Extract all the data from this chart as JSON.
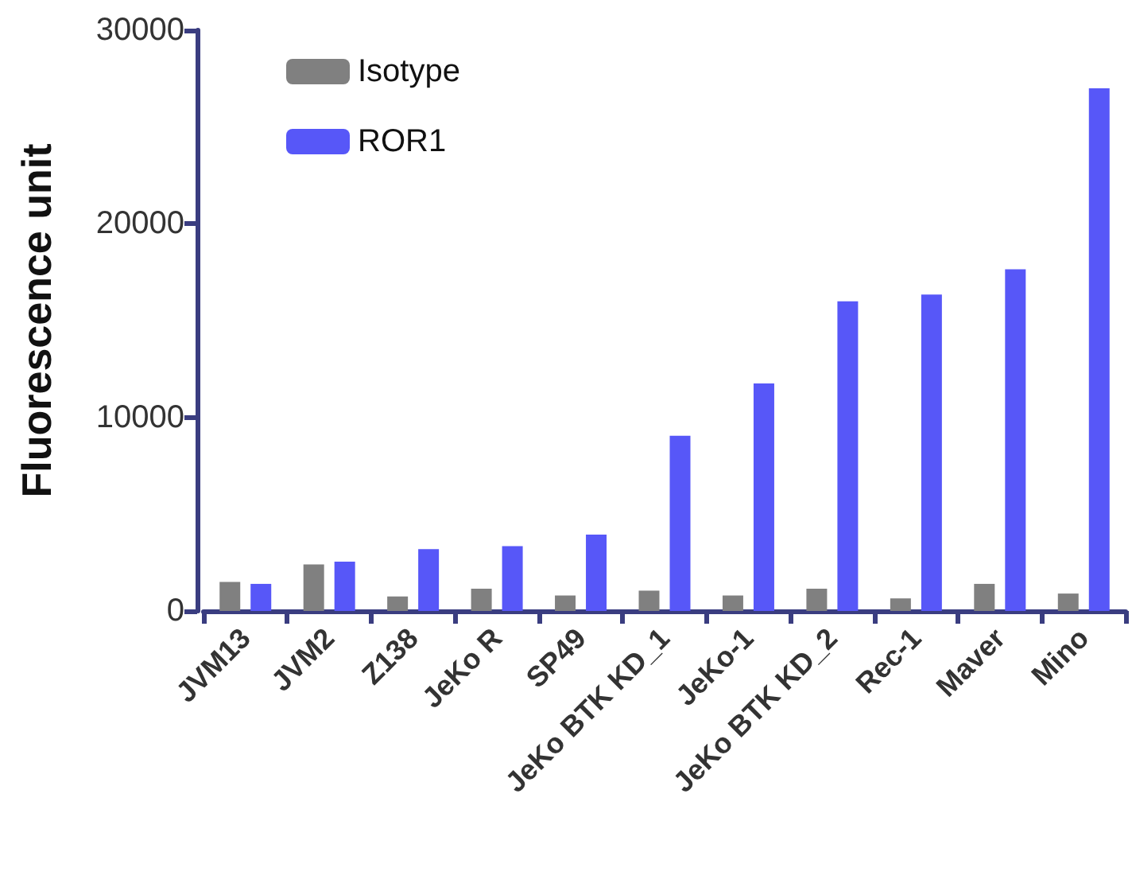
{
  "chart_data": {
    "type": "bar",
    "ylabel": "Fluorescence unit",
    "categories": [
      "JVM13",
      "JVM2",
      "Z138",
      "JeKo R",
      "SP49",
      "JeKo BTK KD_1",
      "JeKo-1",
      "JeKo BTK KD_2",
      "Rec-1",
      "Maver",
      "Mino"
    ],
    "series": [
      {
        "name": "Isotype",
        "color": "#808080",
        "values": [
          1500,
          2400,
          750,
          1150,
          800,
          1050,
          800,
          1150,
          650,
          1400,
          900
        ]
      },
      {
        "name": "ROR1",
        "color": "#5757f8",
        "values": [
          1400,
          2550,
          3200,
          3350,
          3950,
          9050,
          11750,
          16000,
          16350,
          17650,
          27000
        ]
      }
    ],
    "ylim": [
      0,
      30000
    ],
    "yticks": [
      0,
      10000,
      20000,
      30000
    ],
    "grid": false,
    "legend": "top left"
  }
}
